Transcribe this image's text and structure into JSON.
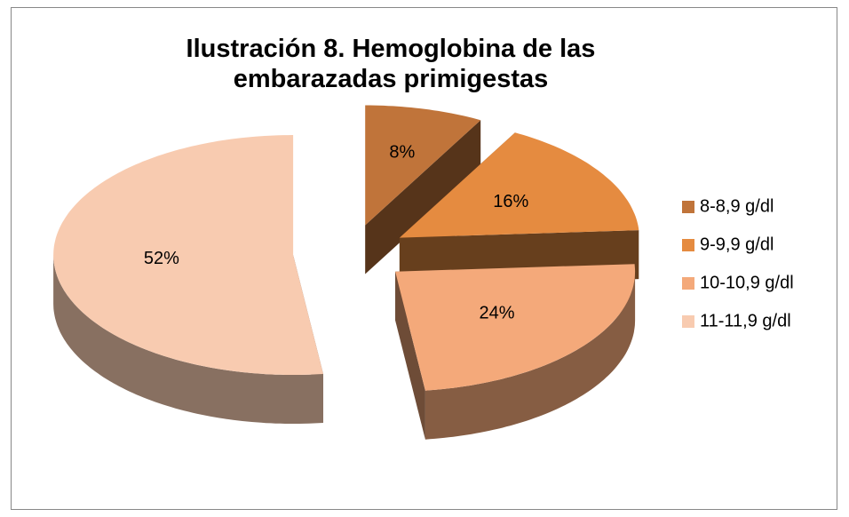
{
  "chart_data": {
    "type": "pie",
    "title": "Ilustración 8. Hemoglobina de las embarazadas primigestas",
    "categories": [
      "8-8,9 g/dl",
      "9-9,9 g/dl",
      "10-10,9 g/dl",
      "11-11,9 g/dl"
    ],
    "values": [
      8,
      16,
      24,
      52
    ],
    "value_labels": [
      "8%",
      "16%",
      "24%",
      "52%"
    ],
    "colors": [
      "#c0743a",
      "#e58b40",
      "#f4a97a",
      "#f8cbb0"
    ],
    "legend": "right"
  }
}
